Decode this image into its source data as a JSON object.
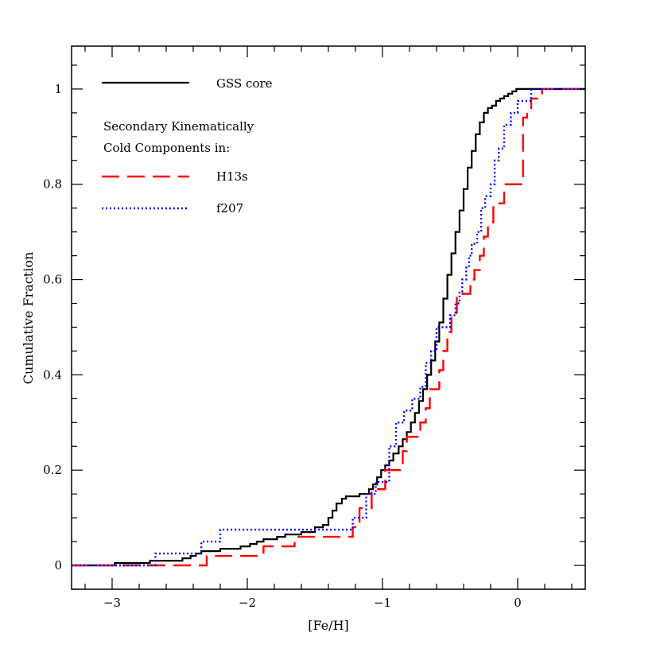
{
  "chart_data": {
    "type": "line",
    "step": true,
    "xlabel": "[Fe/H]",
    "ylabel": "Cumulative Fraction",
    "xlim": [
      -3.3,
      0.5
    ],
    "ylim": [
      -0.05,
      1.09
    ],
    "xticks": [
      -3,
      -2,
      -1,
      0
    ],
    "xtick_labels": [
      "−3",
      "−2",
      "−1",
      "0"
    ],
    "yticks": [
      0,
      0.2,
      0.4,
      0.6,
      0.8,
      1
    ],
    "ytick_labels": [
      "0",
      "0.2",
      "0.4",
      "0.6",
      "0.8",
      "1"
    ],
    "grid": false,
    "legend": {
      "placement": "top-left",
      "heading": [
        "Secondary Kinematically",
        "Cold Components in:"
      ]
    },
    "series": [
      {
        "name": "GSS core",
        "color": "#000000",
        "dash": "solid",
        "x": [
          -3.3,
          -2.98,
          -2.72,
          -2.48,
          -2.42,
          -2.38,
          -2.34,
          -2.3,
          -2.2,
          -2.05,
          -1.98,
          -1.93,
          -1.88,
          -1.78,
          -1.72,
          -1.6,
          -1.5,
          -1.44,
          -1.4,
          -1.37,
          -1.34,
          -1.3,
          -1.27,
          -1.22,
          -1.17,
          -1.1,
          -1.07,
          -1.04,
          -1.01,
          -0.98,
          -0.95,
          -0.92,
          -0.88,
          -0.85,
          -0.82,
          -0.79,
          -0.76,
          -0.73,
          -0.7,
          -0.67,
          -0.64,
          -0.61,
          -0.58,
          -0.55,
          -0.52,
          -0.49,
          -0.46,
          -0.43,
          -0.4,
          -0.37,
          -0.34,
          -0.31,
          -0.28,
          -0.25,
          -0.22,
          -0.19,
          -0.16,
          -0.13,
          -0.1,
          -0.07,
          -0.04,
          -0.01,
          0.02,
          0.5
        ],
        "y": [
          0.0,
          0.005,
          0.01,
          0.015,
          0.02,
          0.025,
          0.03,
          0.03,
          0.035,
          0.04,
          0.045,
          0.05,
          0.055,
          0.06,
          0.065,
          0.07,
          0.08,
          0.085,
          0.1,
          0.115,
          0.13,
          0.14,
          0.145,
          0.145,
          0.15,
          0.16,
          0.17,
          0.185,
          0.2,
          0.21,
          0.22,
          0.235,
          0.25,
          0.265,
          0.28,
          0.3,
          0.32,
          0.345,
          0.37,
          0.4,
          0.43,
          0.47,
          0.51,
          0.56,
          0.61,
          0.655,
          0.7,
          0.745,
          0.79,
          0.835,
          0.87,
          0.905,
          0.93,
          0.95,
          0.96,
          0.965,
          0.975,
          0.98,
          0.985,
          0.99,
          0.995,
          1.0,
          1.0,
          1.0
        ]
      },
      {
        "name": "H13s",
        "color": "#ff0000",
        "dash": "long-dash",
        "x": [
          -3.3,
          -2.3,
          -1.92,
          -1.88,
          -1.65,
          -1.22,
          -1.17,
          -1.08,
          -1.02,
          -0.98,
          -0.88,
          -0.85,
          -0.82,
          -0.72,
          -0.68,
          -0.65,
          -0.58,
          -0.55,
          -0.52,
          -0.49,
          -0.45,
          -0.35,
          -0.32,
          -0.28,
          -0.25,
          -0.22,
          -0.18,
          -0.14,
          -0.1,
          -0.01,
          0.04,
          0.07,
          0.1,
          0.18,
          0.5
        ],
        "y": [
          0.0,
          0.02,
          0.02,
          0.04,
          0.06,
          0.08,
          0.12,
          0.16,
          0.16,
          0.2,
          0.2,
          0.24,
          0.27,
          0.3,
          0.33,
          0.37,
          0.41,
          0.45,
          0.49,
          0.53,
          0.57,
          0.6,
          0.62,
          0.65,
          0.69,
          0.72,
          0.76,
          0.76,
          0.8,
          0.8,
          0.94,
          0.96,
          0.98,
          1.0,
          1.0
        ]
      },
      {
        "name": "f207",
        "color": "#0000ff",
        "dash": "dotted",
        "x": [
          -3.3,
          -2.68,
          -2.34,
          -2.28,
          -2.2,
          -1.22,
          -1.12,
          -1.05,
          -0.95,
          -0.9,
          -0.84,
          -0.78,
          -0.72,
          -0.68,
          -0.64,
          -0.6,
          -0.5,
          -0.46,
          -0.43,
          -0.41,
          -0.38,
          -0.36,
          -0.34,
          -0.3,
          -0.27,
          -0.24,
          -0.2,
          -0.17,
          -0.14,
          -0.1,
          -0.05,
          0.0,
          0.05,
          0.1,
          0.5
        ],
        "y": [
          0.0,
          0.025,
          0.05,
          0.05,
          0.075,
          0.1,
          0.15,
          0.175,
          0.25,
          0.3,
          0.325,
          0.35,
          0.375,
          0.425,
          0.45,
          0.5,
          0.525,
          0.55,
          0.575,
          0.6,
          0.625,
          0.65,
          0.675,
          0.7,
          0.75,
          0.775,
          0.8,
          0.85,
          0.875,
          0.925,
          0.95,
          0.975,
          0.975,
          1.0,
          1.0
        ]
      }
    ]
  }
}
